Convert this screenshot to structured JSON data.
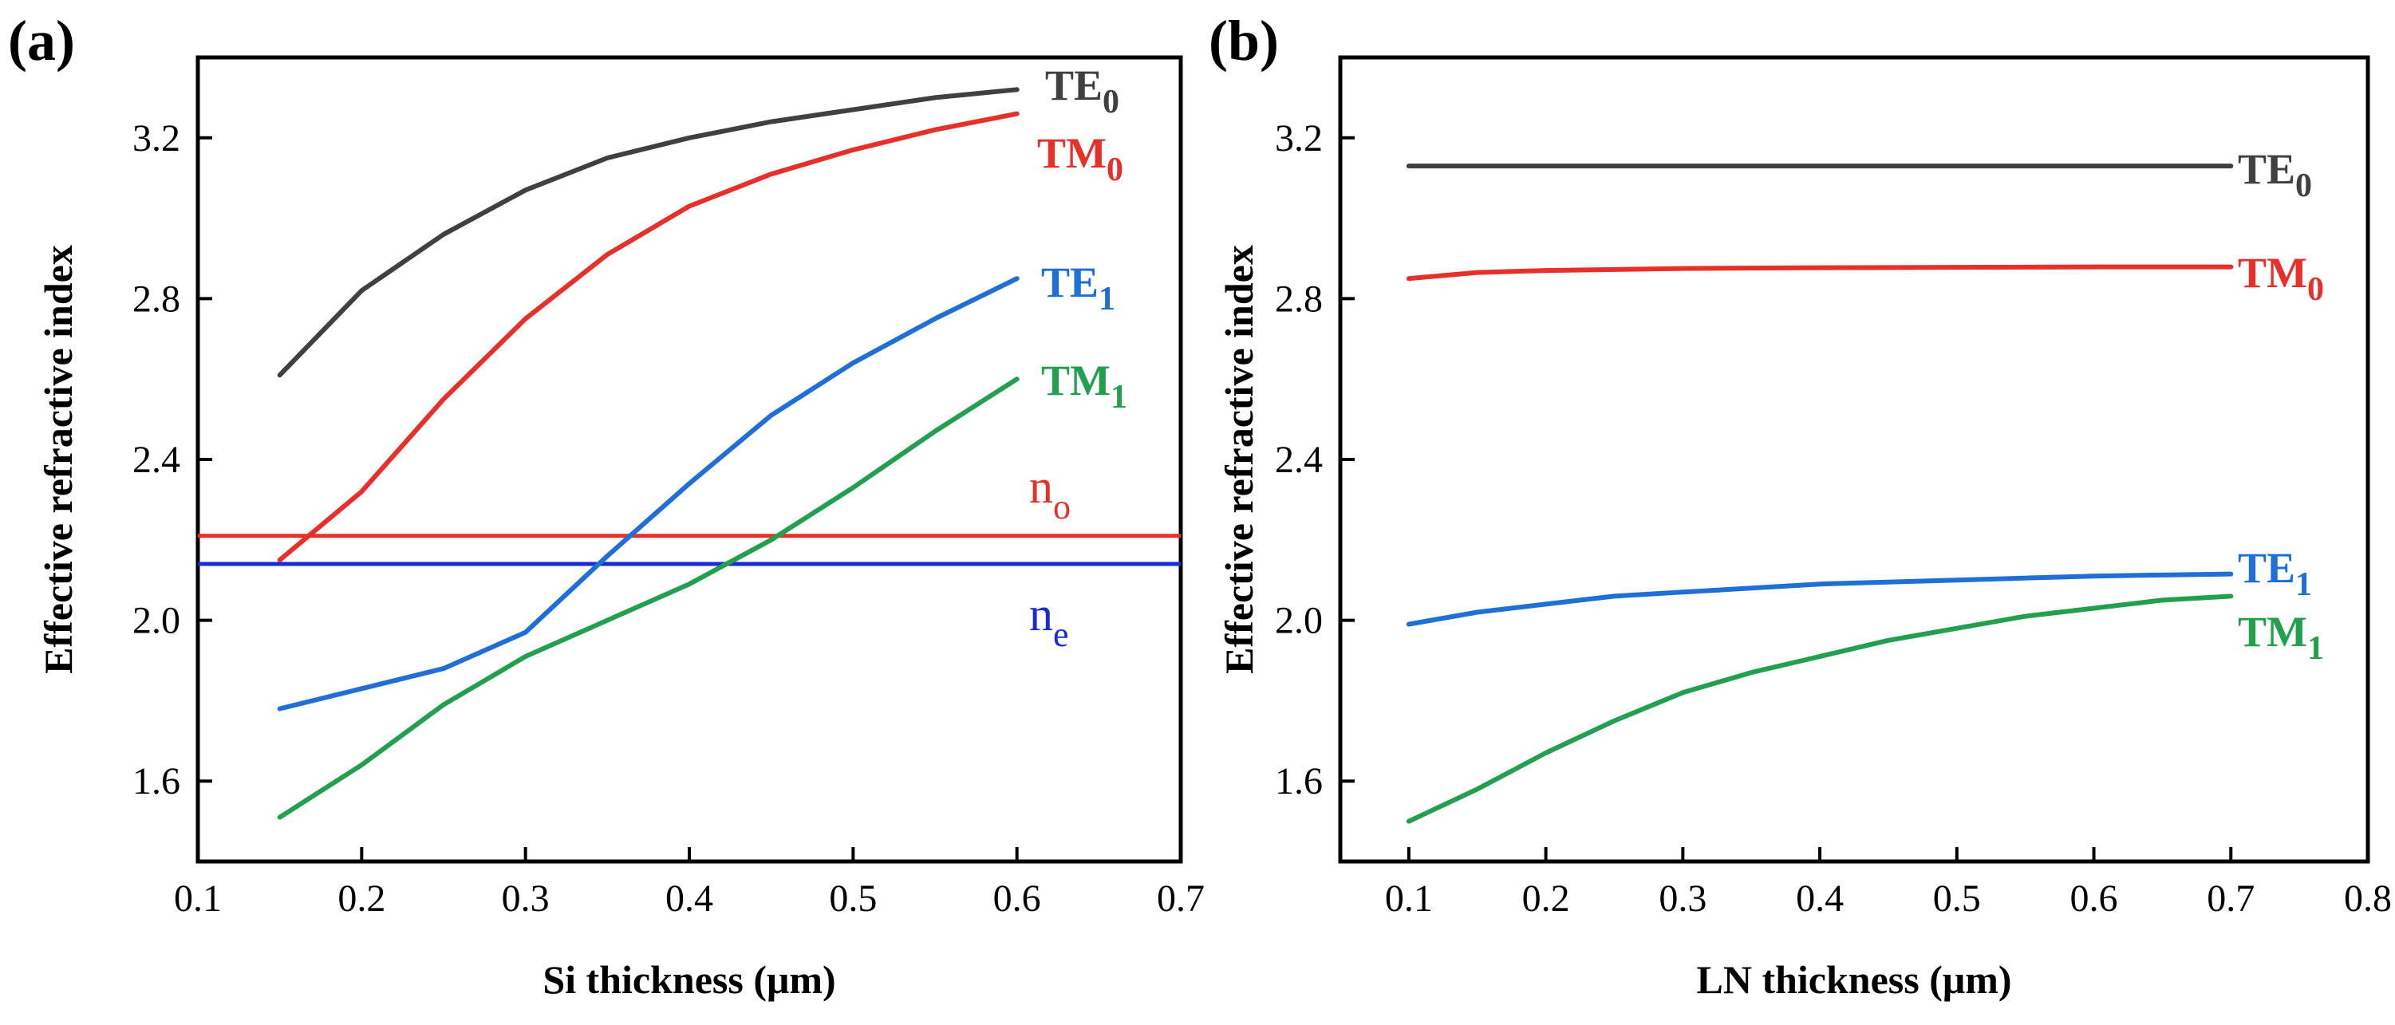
{
  "chart_data": [
    {
      "type": "line",
      "panel_label": "(a)",
      "xlabel": "Si thickness (μm)",
      "ylabel": "Effective refractive index",
      "xlim": [
        0.1,
        0.7
      ],
      "ylim": [
        1.4,
        3.4
      ],
      "x_ticks": [
        "0.1",
        "0.2",
        "0.3",
        "0.4",
        "0.5",
        "0.6",
        "0.7"
      ],
      "y_ticks": [
        "1.6",
        "2.0",
        "2.4",
        "2.8",
        "3.2"
      ],
      "series": [
        {
          "name": "TE",
          "sub": "0",
          "color": "#404040",
          "x": [
            0.15,
            0.2,
            0.25,
            0.3,
            0.35,
            0.4,
            0.45,
            0.5,
            0.55,
            0.6
          ],
          "y": [
            2.61,
            2.82,
            2.96,
            3.07,
            3.15,
            3.2,
            3.24,
            3.27,
            3.3,
            3.32
          ]
        },
        {
          "name": "TM",
          "sub": "0",
          "color": "#e8302a",
          "x": [
            0.15,
            0.2,
            0.25,
            0.3,
            0.35,
            0.4,
            0.45,
            0.5,
            0.55,
            0.6
          ],
          "y": [
            2.15,
            2.32,
            2.55,
            2.75,
            2.91,
            3.03,
            3.11,
            3.17,
            3.22,
            3.26
          ]
        },
        {
          "name": "TE",
          "sub": "1",
          "color": "#1f6fd6",
          "x": [
            0.15,
            0.2,
            0.25,
            0.3,
            0.35,
            0.4,
            0.45,
            0.5,
            0.55,
            0.6
          ],
          "y": [
            1.78,
            1.83,
            1.88,
            1.97,
            2.16,
            2.34,
            2.51,
            2.64,
            2.75,
            2.85
          ]
        },
        {
          "name": "TM",
          "sub": "1",
          "color": "#22a050",
          "x": [
            0.15,
            0.2,
            0.25,
            0.3,
            0.35,
            0.4,
            0.45,
            0.5,
            0.55,
            0.6
          ],
          "y": [
            1.51,
            1.64,
            1.79,
            1.91,
            2.0,
            2.09,
            2.2,
            2.33,
            2.47,
            2.6
          ]
        }
      ],
      "reference_lines": [
        {
          "name": "n",
          "sub": "o",
          "y": 2.21,
          "color": "#e8302a"
        },
        {
          "name": "n",
          "sub": "e",
          "y": 2.14,
          "color": "#1a2ad8"
        }
      ]
    },
    {
      "type": "line",
      "panel_label": "(b)",
      "xlabel": "LN thickness (μm)",
      "ylabel": "Effective refractive index",
      "xlim": [
        0.05,
        0.8
      ],
      "ylim": [
        1.4,
        3.4
      ],
      "x_ticks": [
        "0.1",
        "0.2",
        "0.3",
        "0.4",
        "0.5",
        "0.6",
        "0.7",
        "0.8"
      ],
      "y_ticks": [
        "1.6",
        "2.0",
        "2.4",
        "2.8",
        "3.2"
      ],
      "series": [
        {
          "name": "TE",
          "sub": "0",
          "color": "#404040",
          "x": [
            0.1,
            0.15,
            0.2,
            0.3,
            0.4,
            0.5,
            0.6,
            0.7
          ],
          "y": [
            3.13,
            3.13,
            3.13,
            3.13,
            3.13,
            3.13,
            3.13,
            3.13
          ]
        },
        {
          "name": "TM",
          "sub": "0",
          "color": "#e8302a",
          "x": [
            0.1,
            0.15,
            0.2,
            0.3,
            0.4,
            0.5,
            0.6,
            0.7
          ],
          "y": [
            2.85,
            2.865,
            2.87,
            2.875,
            2.877,
            2.878,
            2.879,
            2.879
          ]
        },
        {
          "name": "TE",
          "sub": "1",
          "color": "#1f6fd6",
          "x": [
            0.1,
            0.15,
            0.2,
            0.25,
            0.3,
            0.4,
            0.5,
            0.6,
            0.7
          ],
          "y": [
            1.99,
            2.02,
            2.04,
            2.06,
            2.07,
            2.09,
            2.1,
            2.11,
            2.115
          ]
        },
        {
          "name": "TM",
          "sub": "1",
          "color": "#22a050",
          "x": [
            0.1,
            0.15,
            0.2,
            0.25,
            0.3,
            0.35,
            0.4,
            0.45,
            0.5,
            0.55,
            0.6,
            0.65,
            0.7
          ],
          "y": [
            1.5,
            1.58,
            1.67,
            1.75,
            1.82,
            1.87,
            1.91,
            1.95,
            1.98,
            2.01,
            2.03,
            2.05,
            2.06
          ]
        }
      ],
      "reference_lines": []
    }
  ]
}
